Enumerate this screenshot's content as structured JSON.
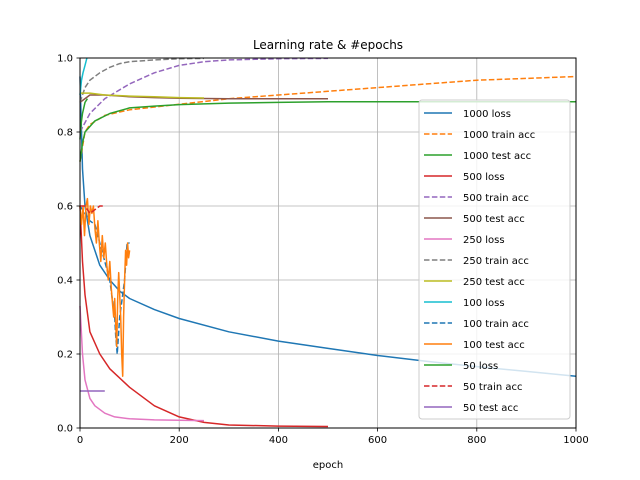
{
  "chart_data": {
    "type": "line",
    "title": "Learning rate & #epochs",
    "xlabel": "epoch",
    "ylabel": "",
    "xlim": [
      0,
      1000
    ],
    "ylim": [
      0,
      1.0
    ],
    "xticks": [
      "0",
      "200",
      "400",
      "600",
      "800",
      "1000"
    ],
    "yticks": [
      "0.0",
      "0.2",
      "0.4",
      "0.6",
      "0.8",
      "1.0"
    ],
    "grid": true,
    "legend_position": "right",
    "series": [
      {
        "name": "1000 loss",
        "color": "#1f77b4",
        "dash": "solid",
        "points": [
          [
            0,
            0.95
          ],
          [
            5,
            0.7
          ],
          [
            10,
            0.6
          ],
          [
            20,
            0.52
          ],
          [
            40,
            0.44
          ],
          [
            60,
            0.4
          ],
          [
            80,
            0.37
          ],
          [
            100,
            0.35
          ],
          [
            150,
            0.32
          ],
          [
            200,
            0.296
          ],
          [
            300,
            0.26
          ],
          [
            400,
            0.235
          ],
          [
            500,
            0.215
          ],
          [
            600,
            0.196
          ],
          [
            700,
            0.18
          ],
          [
            800,
            0.166
          ],
          [
            900,
            0.153
          ],
          [
            1000,
            0.14
          ]
        ]
      },
      {
        "name": "1000 train acc",
        "color": "#ff7f0e",
        "dash": "dashed",
        "points": [
          [
            0,
            0.72
          ],
          [
            10,
            0.8
          ],
          [
            20,
            0.82
          ],
          [
            50,
            0.845
          ],
          [
            100,
            0.86
          ],
          [
            200,
            0.875
          ],
          [
            300,
            0.89
          ],
          [
            400,
            0.9
          ],
          [
            500,
            0.91
          ],
          [
            600,
            0.92
          ],
          [
            700,
            0.93
          ],
          [
            800,
            0.94
          ],
          [
            900,
            0.945
          ],
          [
            1000,
            0.95
          ]
        ]
      },
      {
        "name": "1000 test acc",
        "color": "#2ca02c",
        "dash": "solid",
        "points": [
          [
            0,
            0.72
          ],
          [
            5,
            0.77
          ],
          [
            10,
            0.8
          ],
          [
            30,
            0.83
          ],
          [
            60,
            0.85
          ],
          [
            100,
            0.865
          ],
          [
            150,
            0.87
          ],
          [
            200,
            0.874
          ],
          [
            300,
            0.878
          ],
          [
            400,
            0.88
          ],
          [
            500,
            0.882
          ],
          [
            600,
            0.882
          ],
          [
            800,
            0.882
          ],
          [
            1000,
            0.882
          ]
        ]
      },
      {
        "name": "500 loss",
        "color": "#d62728",
        "dash": "solid",
        "points": [
          [
            0,
            0.6
          ],
          [
            5,
            0.45
          ],
          [
            10,
            0.36
          ],
          [
            20,
            0.26
          ],
          [
            40,
            0.2
          ],
          [
            60,
            0.16
          ],
          [
            100,
            0.11
          ],
          [
            150,
            0.06
          ],
          [
            200,
            0.03
          ],
          [
            250,
            0.015
          ],
          [
            300,
            0.008
          ],
          [
            400,
            0.005
          ],
          [
            500,
            0.004
          ]
        ]
      },
      {
        "name": "500 train acc",
        "color": "#9467bd",
        "dash": "dashed",
        "points": [
          [
            0,
            0.8
          ],
          [
            20,
            0.85
          ],
          [
            50,
            0.89
          ],
          [
            100,
            0.93
          ],
          [
            150,
            0.96
          ],
          [
            200,
            0.98
          ],
          [
            250,
            0.99
          ],
          [
            300,
            0.995
          ],
          [
            400,
            0.998
          ],
          [
            500,
            0.999
          ]
        ]
      },
      {
        "name": "500 test acc",
        "color": "#8c564b",
        "dash": "solid",
        "points": [
          [
            0,
            0.88
          ],
          [
            20,
            0.9
          ],
          [
            50,
            0.9
          ],
          [
            100,
            0.895
          ],
          [
            150,
            0.893
          ],
          [
            200,
            0.891
          ],
          [
            300,
            0.89
          ],
          [
            400,
            0.89
          ],
          [
            500,
            0.89
          ]
        ]
      },
      {
        "name": "250 loss",
        "color": "#e377c2",
        "dash": "solid",
        "points": [
          [
            0,
            0.33
          ],
          [
            5,
            0.2
          ],
          [
            10,
            0.13
          ],
          [
            20,
            0.08
          ],
          [
            30,
            0.06
          ],
          [
            50,
            0.04
          ],
          [
            70,
            0.03
          ],
          [
            100,
            0.025
          ],
          [
            150,
            0.022
          ],
          [
            200,
            0.021
          ],
          [
            250,
            0.02
          ]
        ]
      },
      {
        "name": "250 train acc",
        "color": "#7f7f7f",
        "dash": "dashed",
        "points": [
          [
            0,
            0.88
          ],
          [
            10,
            0.92
          ],
          [
            20,
            0.94
          ],
          [
            40,
            0.96
          ],
          [
            60,
            0.975
          ],
          [
            80,
            0.985
          ],
          [
            100,
            0.99
          ],
          [
            150,
            0.995
          ],
          [
            200,
            0.998
          ],
          [
            250,
            0.999
          ]
        ]
      },
      {
        "name": "250 test acc",
        "color": "#bcbd22",
        "dash": "solid",
        "points": [
          [
            0,
            0.905
          ],
          [
            20,
            0.905
          ],
          [
            50,
            0.9
          ],
          [
            100,
            0.897
          ],
          [
            150,
            0.895
          ],
          [
            200,
            0.893
          ],
          [
            250,
            0.892
          ]
        ]
      },
      {
        "name": "100 loss",
        "color": "#17becf",
        "dash": "solid",
        "points": [
          [
            0,
            0.9
          ],
          [
            3,
            0.94
          ],
          [
            6,
            0.96
          ],
          [
            10,
            0.98
          ],
          [
            14,
            1.0
          ]
        ]
      },
      {
        "name": "100 train acc",
        "color": "#1f77b4",
        "dash": "dashed",
        "points": [
          [
            0,
            0.6
          ],
          [
            10,
            0.58
          ],
          [
            20,
            0.56
          ],
          [
            30,
            0.55
          ],
          [
            40,
            0.5
          ],
          [
            50,
            0.45
          ],
          [
            60,
            0.4
          ],
          [
            65,
            0.35
          ],
          [
            70,
            0.3
          ],
          [
            72,
            0.25
          ],
          [
            75,
            0.2
          ],
          [
            80,
            0.3
          ],
          [
            85,
            0.35
          ],
          [
            90,
            0.4
          ],
          [
            95,
            0.5
          ],
          [
            100,
            0.5
          ]
        ]
      },
      {
        "name": "100 test acc",
        "color": "#ff7f0e",
        "dash": "solid",
        "points": [
          [
            0,
            0.6
          ],
          [
            3,
            0.55
          ],
          [
            6,
            0.6
          ],
          [
            9,
            0.52
          ],
          [
            12,
            0.6
          ],
          [
            15,
            0.62
          ],
          [
            18,
            0.55
          ],
          [
            21,
            0.6
          ],
          [
            24,
            0.58
          ],
          [
            27,
            0.6
          ],
          [
            30,
            0.54
          ],
          [
            33,
            0.5
          ],
          [
            36,
            0.56
          ],
          [
            39,
            0.5
          ],
          [
            42,
            0.45
          ],
          [
            45,
            0.52
          ],
          [
            48,
            0.46
          ],
          [
            51,
            0.5
          ],
          [
            54,
            0.44
          ],
          [
            57,
            0.4
          ],
          [
            60,
            0.45
          ],
          [
            63,
            0.38
          ],
          [
            66,
            0.33
          ],
          [
            68,
            0.3
          ],
          [
            70,
            0.35
          ],
          [
            72,
            0.28
          ],
          [
            74,
            0.22
          ],
          [
            76,
            0.35
          ],
          [
            78,
            0.42
          ],
          [
            80,
            0.36
          ],
          [
            82,
            0.3
          ],
          [
            84,
            0.2
          ],
          [
            86,
            0.14
          ],
          [
            88,
            0.3
          ],
          [
            90,
            0.4
          ],
          [
            92,
            0.48
          ],
          [
            94,
            0.44
          ],
          [
            96,
            0.5
          ],
          [
            98,
            0.46
          ],
          [
            100,
            0.48
          ]
        ]
      },
      {
        "name": "50 loss",
        "color": "#2ca02c",
        "dash": "solid",
        "points": [
          [
            0,
            0.78
          ],
          [
            2,
            0.82
          ],
          [
            5,
            0.85
          ],
          [
            10,
            0.88
          ],
          [
            15,
            0.89
          ]
        ]
      },
      {
        "name": "50 train acc",
        "color": "#d62728",
        "dash": "dashed",
        "points": [
          [
            0,
            0.6
          ],
          [
            10,
            0.6
          ],
          [
            20,
            0.58
          ],
          [
            30,
            0.59
          ],
          [
            40,
            0.6
          ],
          [
            50,
            0.6
          ]
        ]
      },
      {
        "name": "50 test acc",
        "color": "#9467bd",
        "dash": "solid",
        "points": [
          [
            0,
            0.1
          ],
          [
            10,
            0.1
          ],
          [
            20,
            0.1
          ],
          [
            30,
            0.1
          ],
          [
            40,
            0.1
          ],
          [
            50,
            0.1
          ]
        ]
      }
    ]
  }
}
